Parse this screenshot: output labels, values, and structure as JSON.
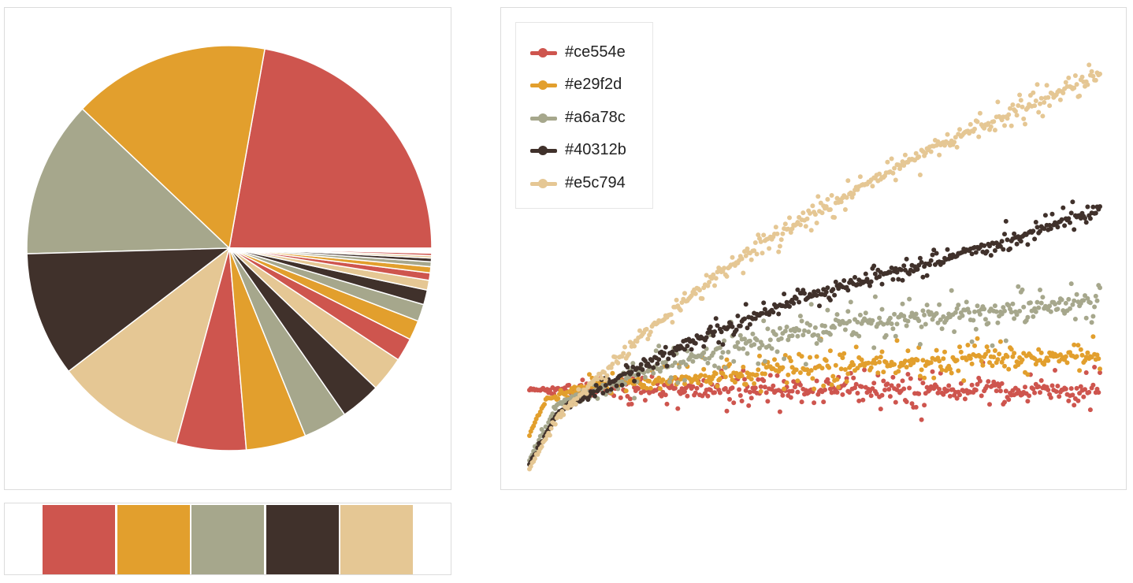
{
  "palette": [
    "#ce554e",
    "#e29f2d",
    "#a6a78c",
    "#40312b",
    "#e5c794"
  ],
  "chart_data": [
    {
      "type": "pie",
      "slice_colors": [
        "#ce554e",
        "#e29f2d",
        "#a6a78c",
        "#40312b",
        "#e5c794",
        "#ce554e",
        "#e29f2d",
        "#a6a78c",
        "#40312b",
        "#e5c794",
        "#ce554e",
        "#e29f2d",
        "#a6a78c",
        "#40312b",
        "#e5c794",
        "#ce554e",
        "#e29f2d",
        "#a6a78c",
        "#40312b",
        "#e5c794",
        "#ce554e",
        "#e29f2d",
        "#a6a78c",
        "#40312b",
        "#e5c794"
      ],
      "values": [
        22.7,
        16.1,
        12.8,
        10.2,
        10.6,
        5.7,
        4.9,
        3.6,
        3.3,
        2.9,
        1.9,
        1.6,
        1.4,
        1.2,
        0.8,
        0.6,
        0.5,
        0.4,
        0.3,
        0.2,
        0.2,
        0.1,
        0.1,
        0.1,
        0.1
      ]
    },
    {
      "type": "scatter",
      "legend_position": "top-left",
      "grid": false,
      "xlim": [
        0,
        100
      ],
      "ylim": [
        0,
        100
      ],
      "series": [
        {
          "name": "#ce554e",
          "color": "#ce554e",
          "trend": [
            [
              0,
              18
            ],
            [
              100,
              18
            ]
          ],
          "spread": 4
        },
        {
          "name": "#e29f2d",
          "color": "#e29f2d",
          "trend": [
            [
              0,
              8
            ],
            [
              3,
              16
            ],
            [
              10,
              19
            ],
            [
              30,
              21
            ],
            [
              60,
              24
            ],
            [
              100,
              26
            ]
          ],
          "spread": 4
        },
        {
          "name": "#a6a78c",
          "color": "#a6a78c",
          "trend": [
            [
              0,
              2
            ],
            [
              5,
              15
            ],
            [
              20,
              22
            ],
            [
              40,
              30
            ],
            [
              70,
              35
            ],
            [
              100,
              38
            ]
          ],
          "spread": 5
        },
        {
          "name": "#40312b",
          "color": "#40312b",
          "trend": [
            [
              0,
              1
            ],
            [
              5,
              13
            ],
            [
              20,
              24
            ],
            [
              45,
              38
            ],
            [
              70,
              47
            ],
            [
              100,
              59
            ]
          ],
          "spread": 3
        },
        {
          "name": "#e5c794",
          "color": "#e5c794",
          "trend": [
            [
              0,
              0
            ],
            [
              5,
              12
            ],
            [
              20,
              31
            ],
            [
              40,
              51
            ],
            [
              70,
              73
            ],
            [
              100,
              90
            ]
          ],
          "spread": 3
        }
      ]
    }
  ]
}
